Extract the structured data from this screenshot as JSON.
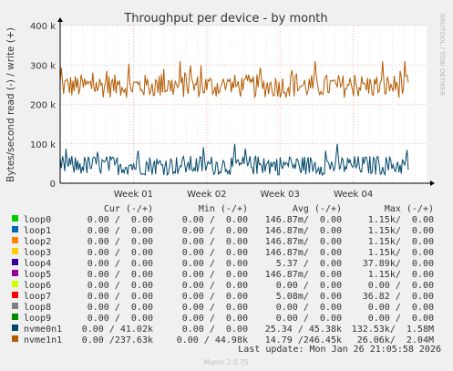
{
  "chart_data": {
    "type": "line",
    "title": "Throughput per device - by month",
    "ylabel": "Bytes/second read (-) / write (+)",
    "side_label": "RRDTOOL / TOBI OETIKER",
    "y_ticks": [
      {
        "value": 0,
        "label": "0"
      },
      {
        "value": 100000,
        "label": "100 k"
      },
      {
        "value": 200000,
        "label": "200 k"
      },
      {
        "value": 300000,
        "label": "300 k"
      },
      {
        "value": 400000,
        "label": "400 k"
      }
    ],
    "ylim": [
      0,
      400000
    ],
    "x_ticks": [
      {
        "value": 0.2,
        "label": "Week 01"
      },
      {
        "value": 0.4,
        "label": "Week 02"
      },
      {
        "value": 0.6,
        "label": "Week 03"
      },
      {
        "value": 0.8,
        "label": "Week 04"
      }
    ],
    "xlim": [
      0,
      1
    ],
    "grid": true,
    "series": [
      {
        "name": "nvme1n1",
        "color": "#b35a00",
        "sample_count": 300,
        "x_range": [
          0,
          0.95
        ],
        "mean": 246450,
        "amplitude": 30000,
        "min": 210000,
        "max": 310000
      },
      {
        "name": "nvme0n1",
        "color": "#00476b",
        "sample_count": 300,
        "x_range": [
          0,
          0.95
        ],
        "mean": 45380,
        "amplitude": 25000,
        "min": 20000,
        "max": 100000
      }
    ],
    "legend": {
      "headers": {
        "cur": "Cur (-/+)",
        "min": "Min (-/+)",
        "avg": "Avg (-/+)",
        "max": "Max (-/+)"
      },
      "rows": [
        {
          "name": "loop0",
          "color": "#00cc00",
          "cur": "0.00 /  0.00",
          "min": "0.00 /  0.00",
          "avg": "146.87m/  0.00",
          "max": "1.15k/  0.00"
        },
        {
          "name": "loop1",
          "color": "#0066b3",
          "cur": "0.00 /  0.00",
          "min": "0.00 /  0.00",
          "avg": "146.87m/  0.00",
          "max": "1.15k/  0.00"
        },
        {
          "name": "loop2",
          "color": "#ff8000",
          "cur": "0.00 /  0.00",
          "min": "0.00 /  0.00",
          "avg": "146.87m/  0.00",
          "max": "1.15k/  0.00"
        },
        {
          "name": "loop3",
          "color": "#ffcc00",
          "cur": "0.00 /  0.00",
          "min": "0.00 /  0.00",
          "avg": "146.87m/  0.00",
          "max": "1.15k/  0.00"
        },
        {
          "name": "loop4",
          "color": "#330099",
          "cur": "0.00 /  0.00",
          "min": "0.00 /  0.00",
          "avg": "5.37 /  0.00",
          "max": "37.89k/  0.00"
        },
        {
          "name": "loop5",
          "color": "#990099",
          "cur": "0.00 /  0.00",
          "min": "0.00 /  0.00",
          "avg": "146.87m/  0.00",
          "max": "1.15k/  0.00"
        },
        {
          "name": "loop6",
          "color": "#ccff00",
          "cur": "0.00 /  0.00",
          "min": "0.00 /  0.00",
          "avg": "0.00 /  0.00",
          "max": "0.00 /  0.00"
        },
        {
          "name": "loop7",
          "color": "#ff0000",
          "cur": "0.00 /  0.00",
          "min": "0.00 /  0.00",
          "avg": "5.08m/  0.00",
          "max": "36.82 /  0.00"
        },
        {
          "name": "loop8",
          "color": "#808080",
          "cur": "0.00 /  0.00",
          "min": "0.00 /  0.00",
          "avg": "0.00 /  0.00",
          "max": "0.00 /  0.00"
        },
        {
          "name": "loop9",
          "color": "#008f00",
          "cur": "0.00 /  0.00",
          "min": "0.00 /  0.00",
          "avg": "0.00 /  0.00",
          "max": "0.00 /  0.00"
        },
        {
          "name": "nvme0n1",
          "color": "#00476b",
          "cur": "0.00 / 41.02k",
          "min": "0.00 /  0.00",
          "avg": "25.34 / 45.38k",
          "max": "132.53k/  1.58M"
        },
        {
          "name": "nvme1n1",
          "color": "#b35a00",
          "cur": "0.00 /237.63k",
          "min": "0.00 / 44.98k",
          "avg": "14.79 /246.45k",
          "max": "26.06k/  2.04M"
        }
      ]
    },
    "last_update": "Last update: Mon Jan 26 21:05:58 2026",
    "footer": "Munin 2.0.75"
  }
}
